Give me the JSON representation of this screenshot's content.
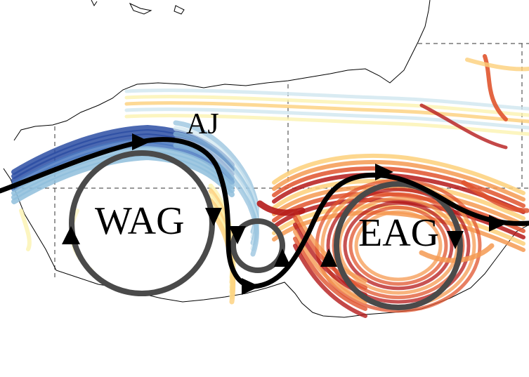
{
  "labels": {
    "jet": "AJ",
    "west_gyre": "WAG",
    "east_gyre": "EAG"
  },
  "colors": {
    "coast": "#000000",
    "grid": "#333333",
    "gyre_ring": "#4a4a4a",
    "current_path": "#000000",
    "drifter_scale": [
      "#2b4da3",
      "#4a78c0",
      "#8fbedc",
      "#cfe6ef",
      "#fbf2b0",
      "#fdd07a",
      "#f59a52",
      "#e0542e",
      "#b51a1a"
    ]
  },
  "icons": [
    "triangle-arrow-icon"
  ]
}
